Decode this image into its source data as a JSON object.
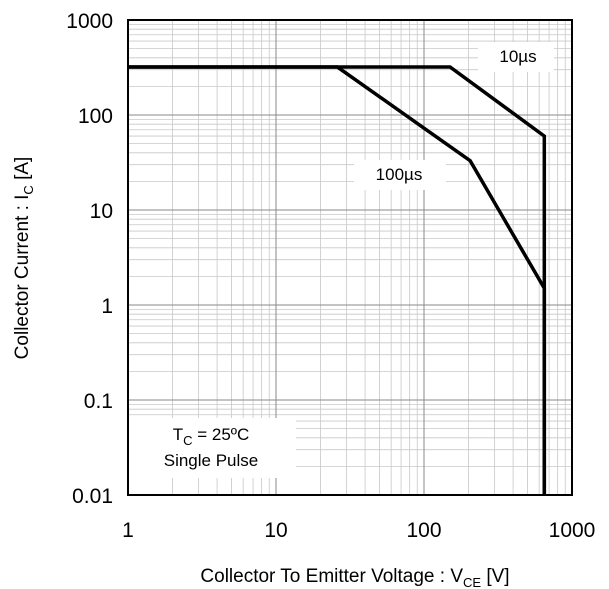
{
  "chart_data": {
    "type": "line",
    "xscale": "log",
    "yscale": "log",
    "xlim": [
      1,
      1000
    ],
    "ylim": [
      0.01,
      1000
    ],
    "xlabel_main": "Collector To Emitter Voltage : V",
    "xlabel_sub": "CE",
    "xlabel_unit": " [V]",
    "ylabel_main": "Collector Current : I",
    "ylabel_sub": "C",
    "ylabel_unit": " [A]",
    "x_ticks": [
      {
        "value": 1,
        "label": "1"
      },
      {
        "value": 10,
        "label": "10"
      },
      {
        "value": 100,
        "label": "100"
      },
      {
        "value": 1000,
        "label": "1000"
      }
    ],
    "y_ticks": [
      {
        "value": 1000,
        "label": "1000"
      },
      {
        "value": 100,
        "label": "100"
      },
      {
        "value": 10,
        "label": "10"
      },
      {
        "value": 1,
        "label": "1"
      },
      {
        "value": 0.1,
        "label": "0.1"
      },
      {
        "value": 0.01,
        "label": "0.01"
      }
    ],
    "grid": true,
    "series": [
      {
        "name": "10µs",
        "points": [
          [
            1,
            320
          ],
          [
            150,
            320
          ],
          [
            650,
            60
          ],
          [
            650,
            0.01
          ]
        ]
      },
      {
        "name": "100µs",
        "points": [
          [
            1,
            320
          ],
          [
            26,
            320
          ],
          [
            205,
            33
          ],
          [
            650,
            1.5
          ],
          [
            650,
            0.01
          ]
        ]
      }
    ],
    "annotations": {
      "tc_main": "T",
      "tc_sub": "C",
      "tc_rest": " = 25ºC",
      "pulse": "Single Pulse"
    }
  }
}
